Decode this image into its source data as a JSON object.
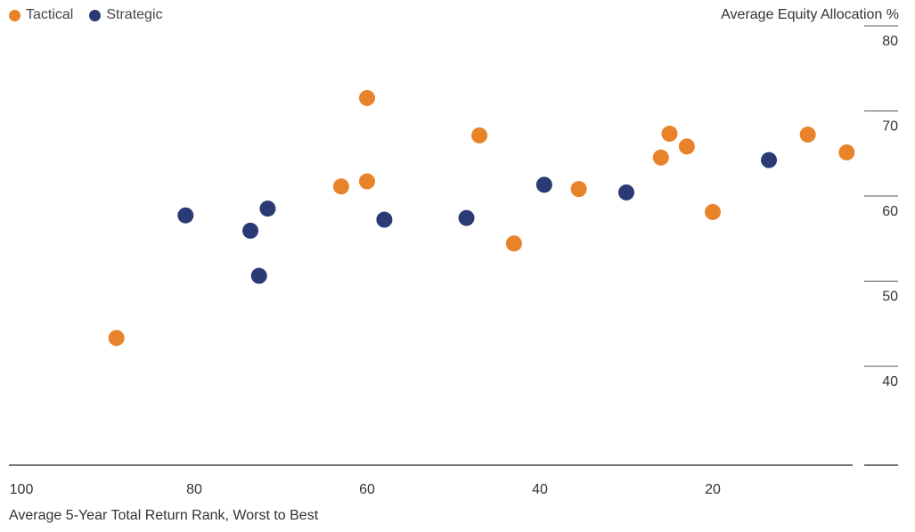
{
  "chart_data": {
    "type": "scatter",
    "title": "",
    "xlabel": "Average 5-Year Total Return Rank, Worst to Best",
    "ylabel": "Average Equity Allocation %",
    "xlim": [
      100,
      0
    ],
    "ylim": [
      30,
      85
    ],
    "x_ticks": [
      100,
      80,
      60,
      40,
      20
    ],
    "y_ticks": [
      40,
      50,
      60,
      70,
      80
    ],
    "legend_position": "top-left",
    "grid": false,
    "series": [
      {
        "name": "Tactical",
        "color": "#E8832A",
        "points": [
          {
            "x": 89,
            "y": 45
          },
          {
            "x": 63,
            "y": 62.8
          },
          {
            "x": 60,
            "y": 73.2
          },
          {
            "x": 60,
            "y": 63.4
          },
          {
            "x": 47,
            "y": 68.8
          },
          {
            "x": 43,
            "y": 56.1
          },
          {
            "x": 35.5,
            "y": 62.5
          },
          {
            "x": 26,
            "y": 66.2
          },
          {
            "x": 25,
            "y": 69
          },
          {
            "x": 23,
            "y": 67.5
          },
          {
            "x": 20,
            "y": 59.8
          },
          {
            "x": 9,
            "y": 68.9
          },
          {
            "x": 4.5,
            "y": 66.8
          }
        ]
      },
      {
        "name": "Strategic",
        "color": "#2B3A75",
        "points": [
          {
            "x": 81,
            "y": 59.4
          },
          {
            "x": 73.5,
            "y": 57.6
          },
          {
            "x": 71.5,
            "y": 60.2
          },
          {
            "x": 72.5,
            "y": 52.3
          },
          {
            "x": 58,
            "y": 58.9
          },
          {
            "x": 48.5,
            "y": 59.1
          },
          {
            "x": 39.5,
            "y": 63
          },
          {
            "x": 30,
            "y": 62.1
          },
          {
            "x": 13.5,
            "y": 65.9
          }
        ]
      }
    ]
  }
}
